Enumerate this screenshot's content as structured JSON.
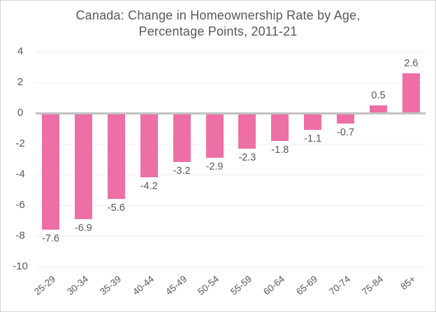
{
  "chart_data": {
    "type": "bar",
    "title": "Canada: Change in Homeownership Rate by Age, Percentage Points, 2011-21",
    "title_lines": [
      "Canada: Change in Homeownership Rate by Age,",
      "Percentage Points, 2011-21"
    ],
    "categories": [
      "25-29",
      "30-34",
      "35-39",
      "40-44",
      "45-49",
      "50-54",
      "55-59",
      "60-64",
      "65-69",
      "70-74",
      "75-84",
      "85+"
    ],
    "values": [
      -7.6,
      -6.9,
      -5.6,
      -4.2,
      -3.2,
      -2.9,
      -2.3,
      -1.8,
      -1.1,
      -0.7,
      0.5,
      2.6
    ],
    "value_labels": [
      "-7.6",
      "-6.9",
      "-5.6",
      "-4.2",
      "-3.2",
      "-2.9",
      "-2.3",
      "-1.8",
      "-1.1",
      "-0.7",
      "0.5",
      "2.6"
    ],
    "xlabel": "",
    "ylabel": "",
    "ylim": [
      -10,
      4
    ],
    "yticks": [
      4,
      2,
      0,
      -2,
      -4,
      -6,
      -8,
      -10
    ],
    "ytick_labels": [
      "4",
      "2",
      "0",
      "-2",
      "-4",
      "-6",
      "-8",
      "-10"
    ],
    "grid": true,
    "legend": false,
    "bar_color": "#ee6ea6",
    "zero_line_color": "#c1c1c1",
    "grid_color": "#ededed",
    "text_color": "#58585a"
  }
}
